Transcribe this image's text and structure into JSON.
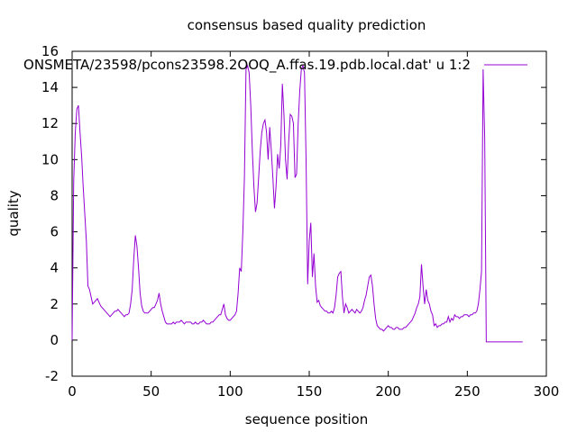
{
  "chart_data": {
    "type": "line",
    "title": "consensus based quality prediction",
    "xlabel": "sequence position",
    "ylabel": "quality",
    "xlim": [
      0,
      300
    ],
    "ylim": [
      -2,
      16
    ],
    "xticks": [
      0,
      50,
      100,
      150,
      200,
      250,
      300
    ],
    "yticks": [
      -2,
      0,
      2,
      4,
      6,
      8,
      10,
      12,
      14,
      16
    ],
    "grid": false,
    "legend_position": "top-right",
    "series": [
      {
        "name": "ONSMETA/23598/pcons23598.2OOQ_A.ffas.19.pdb.local.dat' u 1:2",
        "color": "#9400d3",
        "points": [
          [
            0,
            0.0
          ],
          [
            1,
            8.8
          ],
          [
            2,
            11.5
          ],
          [
            3,
            12.8
          ],
          [
            4,
            13.0
          ],
          [
            5,
            11.5
          ],
          [
            6,
            10.2
          ],
          [
            7,
            8.5
          ],
          [
            8,
            7.0
          ],
          [
            9,
            5.5
          ],
          [
            10,
            3.0
          ],
          [
            11,
            2.8
          ],
          [
            12,
            2.4
          ],
          [
            13,
            2.0
          ],
          [
            14,
            2.1
          ],
          [
            15,
            2.2
          ],
          [
            16,
            2.3
          ],
          [
            17,
            2.1
          ],
          [
            18,
            1.9
          ],
          [
            19,
            1.8
          ],
          [
            20,
            1.7
          ],
          [
            21,
            1.6
          ],
          [
            22,
            1.5
          ],
          [
            23,
            1.4
          ],
          [
            24,
            1.3
          ],
          [
            25,
            1.4
          ],
          [
            26,
            1.5
          ],
          [
            27,
            1.6
          ],
          [
            28,
            1.6
          ],
          [
            29,
            1.7
          ],
          [
            30,
            1.6
          ],
          [
            31,
            1.5
          ],
          [
            32,
            1.4
          ],
          [
            33,
            1.3
          ],
          [
            34,
            1.4
          ],
          [
            35,
            1.4
          ],
          [
            36,
            1.5
          ],
          [
            37,
            2.0
          ],
          [
            38,
            2.8
          ],
          [
            39,
            4.5
          ],
          [
            40,
            5.8
          ],
          [
            41,
            5.2
          ],
          [
            42,
            4.0
          ],
          [
            43,
            2.6
          ],
          [
            44,
            1.9
          ],
          [
            45,
            1.6
          ],
          [
            46,
            1.5
          ],
          [
            47,
            1.5
          ],
          [
            48,
            1.5
          ],
          [
            49,
            1.6
          ],
          [
            50,
            1.7
          ],
          [
            51,
            1.8
          ],
          [
            52,
            1.8
          ],
          [
            53,
            2.0
          ],
          [
            54,
            2.2
          ],
          [
            55,
            2.6
          ],
          [
            56,
            2.0
          ],
          [
            57,
            1.6
          ],
          [
            58,
            1.3
          ],
          [
            59,
            1.0
          ],
          [
            60,
            0.9
          ],
          [
            61,
            0.9
          ],
          [
            62,
            0.9
          ],
          [
            63,
            0.9
          ],
          [
            64,
            1.0
          ],
          [
            65,
            0.9
          ],
          [
            66,
            1.0
          ],
          [
            67,
            1.0
          ],
          [
            68,
            1.0
          ],
          [
            69,
            1.1
          ],
          [
            70,
            1.0
          ],
          [
            71,
            0.9
          ],
          [
            72,
            1.0
          ],
          [
            73,
            1.0
          ],
          [
            74,
            1.0
          ],
          [
            75,
            1.0
          ],
          [
            76,
            0.9
          ],
          [
            77,
            0.9
          ],
          [
            78,
            1.0
          ],
          [
            79,
            0.9
          ],
          [
            80,
            0.9
          ],
          [
            81,
            1.0
          ],
          [
            82,
            1.0
          ],
          [
            83,
            1.1
          ],
          [
            84,
            1.0
          ],
          [
            85,
            0.9
          ],
          [
            86,
            0.9
          ],
          [
            87,
            0.9
          ],
          [
            88,
            1.0
          ],
          [
            89,
            1.0
          ],
          [
            90,
            1.1
          ],
          [
            91,
            1.2
          ],
          [
            92,
            1.3
          ],
          [
            93,
            1.4
          ],
          [
            94,
            1.4
          ],
          [
            95,
            1.7
          ],
          [
            96,
            2.0
          ],
          [
            97,
            1.4
          ],
          [
            98,
            1.2
          ],
          [
            99,
            1.1
          ],
          [
            100,
            1.1
          ],
          [
            101,
            1.2
          ],
          [
            102,
            1.3
          ],
          [
            103,
            1.4
          ],
          [
            104,
            1.6
          ],
          [
            105,
            2.6
          ],
          [
            106,
            4.0
          ],
          [
            107,
            3.8
          ],
          [
            108,
            6.0
          ],
          [
            109,
            9.0
          ],
          [
            110,
            15.0
          ],
          [
            111,
            15.2
          ],
          [
            112,
            14.8
          ],
          [
            113,
            13.0
          ],
          [
            114,
            10.5
          ],
          [
            115,
            8.5
          ],
          [
            116,
            7.1
          ],
          [
            117,
            7.6
          ],
          [
            118,
            9.0
          ],
          [
            119,
            10.5
          ],
          [
            120,
            11.5
          ],
          [
            121,
            12.0
          ],
          [
            122,
            12.2
          ],
          [
            123,
            11.5
          ],
          [
            124,
            10.0
          ],
          [
            125,
            11.8
          ],
          [
            126,
            10.5
          ],
          [
            127,
            9.0
          ],
          [
            128,
            7.3
          ],
          [
            129,
            8.5
          ],
          [
            130,
            10.3
          ],
          [
            131,
            9.5
          ],
          [
            132,
            10.8
          ],
          [
            133,
            14.2
          ],
          [
            134,
            12.5
          ],
          [
            135,
            10.0
          ],
          [
            136,
            8.9
          ],
          [
            137,
            11.0
          ],
          [
            138,
            12.5
          ],
          [
            139,
            12.4
          ],
          [
            140,
            12.0
          ],
          [
            141,
            9.0
          ],
          [
            142,
            9.2
          ],
          [
            143,
            12.0
          ],
          [
            144,
            13.8
          ],
          [
            145,
            15.0
          ],
          [
            146,
            15.2
          ],
          [
            147,
            14.8
          ],
          [
            148,
            10.0
          ],
          [
            149,
            3.1
          ],
          [
            150,
            5.5
          ],
          [
            151,
            6.5
          ],
          [
            152,
            3.5
          ],
          [
            153,
            4.8
          ],
          [
            154,
            3.0
          ],
          [
            155,
            2.1
          ],
          [
            156,
            2.2
          ],
          [
            157,
            1.9
          ],
          [
            158,
            1.8
          ],
          [
            159,
            1.7
          ],
          [
            160,
            1.6
          ],
          [
            161,
            1.6
          ],
          [
            162,
            1.5
          ],
          [
            163,
            1.5
          ],
          [
            164,
            1.6
          ],
          [
            165,
            1.5
          ],
          [
            166,
            1.8
          ],
          [
            167,
            2.5
          ],
          [
            168,
            3.5
          ],
          [
            169,
            3.7
          ],
          [
            170,
            3.8
          ],
          [
            171,
            2.4
          ],
          [
            172,
            1.5
          ],
          [
            173,
            2.0
          ],
          [
            174,
            1.8
          ],
          [
            175,
            1.5
          ],
          [
            176,
            1.6
          ],
          [
            177,
            1.7
          ],
          [
            178,
            1.6
          ],
          [
            179,
            1.5
          ],
          [
            180,
            1.7
          ],
          [
            181,
            1.6
          ],
          [
            182,
            1.5
          ],
          [
            183,
            1.6
          ],
          [
            184,
            1.8
          ],
          [
            185,
            2.2
          ],
          [
            186,
            2.5
          ],
          [
            187,
            3.0
          ],
          [
            188,
            3.5
          ],
          [
            189,
            3.6
          ],
          [
            190,
            3.0
          ],
          [
            191,
            2.0
          ],
          [
            192,
            1.2
          ],
          [
            193,
            0.8
          ],
          [
            194,
            0.7
          ],
          [
            195,
            0.6
          ],
          [
            196,
            0.6
          ],
          [
            197,
            0.5
          ],
          [
            198,
            0.6
          ],
          [
            199,
            0.7
          ],
          [
            200,
            0.8
          ],
          [
            201,
            0.7
          ],
          [
            202,
            0.7
          ],
          [
            203,
            0.6
          ],
          [
            204,
            0.6
          ],
          [
            205,
            0.7
          ],
          [
            206,
            0.7
          ],
          [
            207,
            0.6
          ],
          [
            208,
            0.6
          ],
          [
            209,
            0.6
          ],
          [
            210,
            0.7
          ],
          [
            211,
            0.7
          ],
          [
            212,
            0.8
          ],
          [
            213,
            0.9
          ],
          [
            214,
            1.0
          ],
          [
            215,
            1.1
          ],
          [
            216,
            1.3
          ],
          [
            217,
            1.5
          ],
          [
            218,
            1.8
          ],
          [
            219,
            2.0
          ],
          [
            220,
            2.4
          ],
          [
            221,
            4.2
          ],
          [
            222,
            3.0
          ],
          [
            223,
            2.0
          ],
          [
            224,
            2.8
          ],
          [
            225,
            2.2
          ],
          [
            226,
            2.0
          ],
          [
            227,
            1.6
          ],
          [
            228,
            1.4
          ],
          [
            229,
            0.8
          ],
          [
            230,
            0.9
          ],
          [
            231,
            0.7
          ],
          [
            232,
            0.8
          ],
          [
            233,
            0.8
          ],
          [
            234,
            0.9
          ],
          [
            235,
            0.9
          ],
          [
            236,
            1.0
          ],
          [
            237,
            1.0
          ],
          [
            238,
            1.3
          ],
          [
            239,
            1.0
          ],
          [
            240,
            1.2
          ],
          [
            241,
            1.1
          ],
          [
            242,
            1.4
          ],
          [
            243,
            1.3
          ],
          [
            244,
            1.3
          ],
          [
            245,
            1.2
          ],
          [
            246,
            1.3
          ],
          [
            247,
            1.3
          ],
          [
            248,
            1.4
          ],
          [
            249,
            1.4
          ],
          [
            250,
            1.4
          ],
          [
            251,
            1.3
          ],
          [
            252,
            1.4
          ],
          [
            253,
            1.4
          ],
          [
            254,
            1.5
          ],
          [
            255,
            1.5
          ],
          [
            256,
            1.6
          ],
          [
            257,
            2.0
          ],
          [
            258,
            2.8
          ],
          [
            259,
            3.8
          ],
          [
            260,
            15.0
          ],
          [
            261,
            11.2
          ],
          [
            262,
            -0.1
          ],
          [
            263,
            -0.1
          ],
          [
            264,
            -0.1
          ],
          [
            265,
            -0.1
          ],
          [
            266,
            -0.1
          ],
          [
            267,
            -0.1
          ],
          [
            268,
            -0.1
          ],
          [
            269,
            -0.1
          ],
          [
            270,
            -0.1
          ],
          [
            271,
            -0.1
          ],
          [
            272,
            -0.1
          ],
          [
            273,
            -0.1
          ],
          [
            274,
            -0.1
          ],
          [
            275,
            -0.1
          ],
          [
            276,
            -0.1
          ],
          [
            277,
            -0.1
          ],
          [
            278,
            -0.1
          ],
          [
            279,
            -0.1
          ],
          [
            280,
            -0.1
          ],
          [
            281,
            -0.1
          ],
          [
            282,
            -0.1
          ],
          [
            283,
            -0.1
          ],
          [
            284,
            -0.1
          ],
          [
            285,
            -0.1
          ]
        ]
      }
    ]
  }
}
